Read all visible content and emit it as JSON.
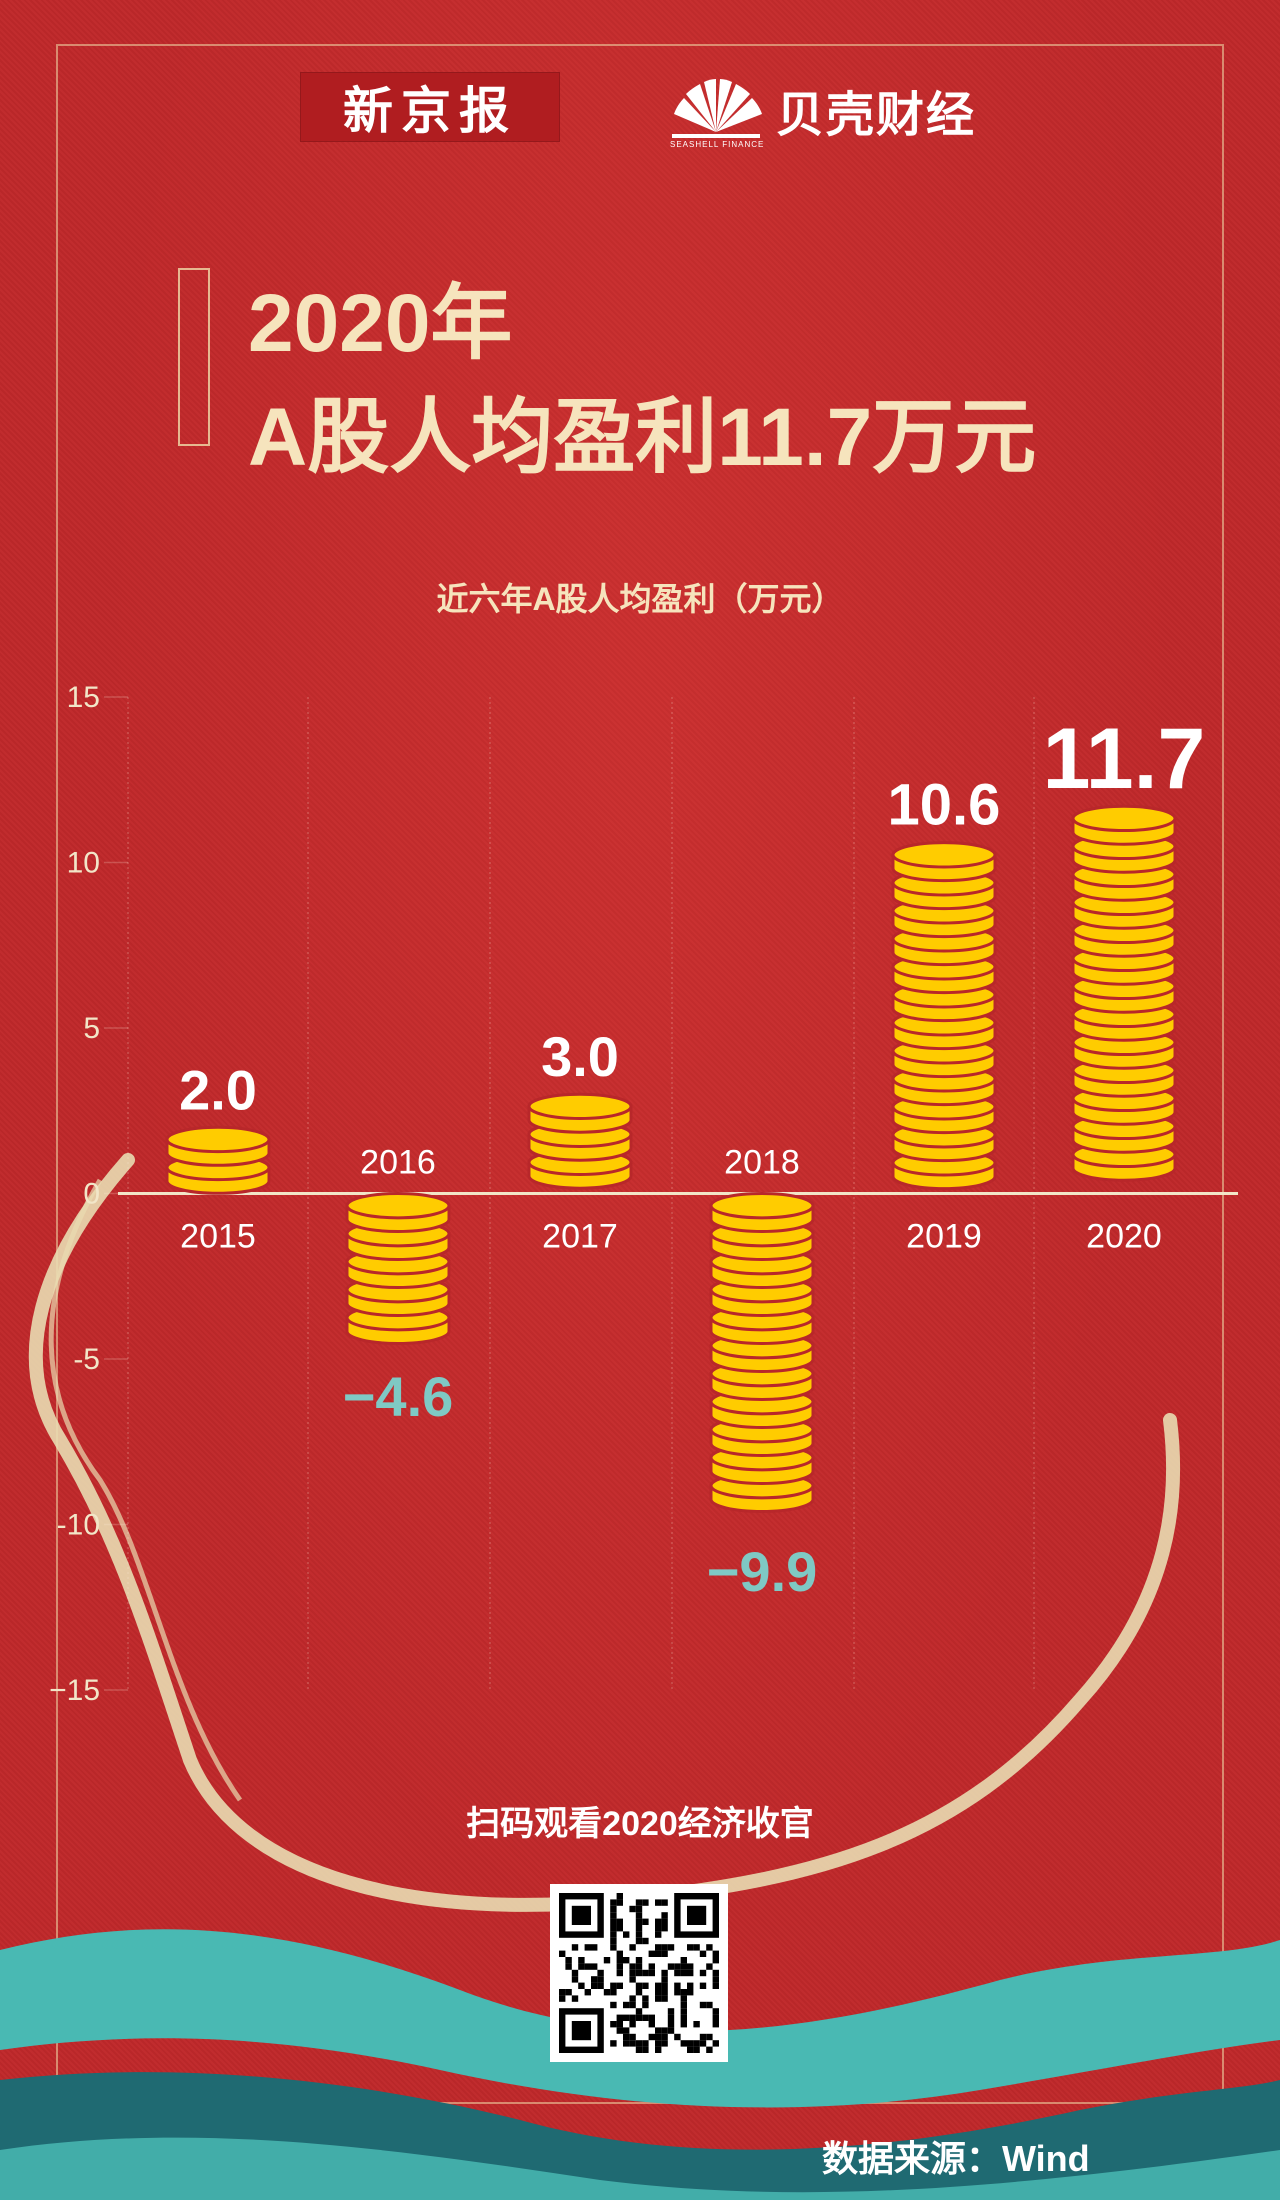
{
  "logos": {
    "xinjingbao": "新京报",
    "beike": "贝壳财经",
    "beike_sub": "SEASHELL FINANCE"
  },
  "title": {
    "line1": "2020年",
    "line2": "A股人均盈利11.7万元"
  },
  "chart_subtitle": "近六年A股人均盈利（万元）",
  "chart_data": {
    "type": "bar",
    "title": "近六年A股人均盈利（万元）",
    "categories": [
      "2015",
      "2016",
      "2017",
      "2018",
      "2019",
      "2020"
    ],
    "values": [
      2.0,
      -4.6,
      3.0,
      -9.9,
      10.6,
      11.7
    ],
    "value_labels": [
      "2.0",
      "−4.6",
      "3.0",
      "−9.9",
      "10.6",
      "11.7"
    ],
    "ylim": [
      -15,
      15
    ],
    "yticks": [
      15,
      10,
      5,
      0,
      -5,
      -10,
      -15
    ],
    "ytick_labels": [
      "15",
      "10",
      "5",
      "0",
      "-5",
      "-10",
      "−15"
    ],
    "grid": true,
    "colors": {
      "coin": "#ffcc00",
      "coin_edge": "#b8272a",
      "positive_label": "#ffffff",
      "negative_label": "#7fc9c4",
      "axis": "#f2e6c8",
      "grid": "rgba(255,235,220,0.22)"
    }
  },
  "scan_text": "扫码观看2020经济收官",
  "source": "数据来源：Wind",
  "colors": {
    "background": "#c0282a",
    "title": "#f6e4bd",
    "ribbon": "#e9dcb1",
    "wave_teal": "#49b9b3",
    "wave_dark": "#1f6a72"
  }
}
